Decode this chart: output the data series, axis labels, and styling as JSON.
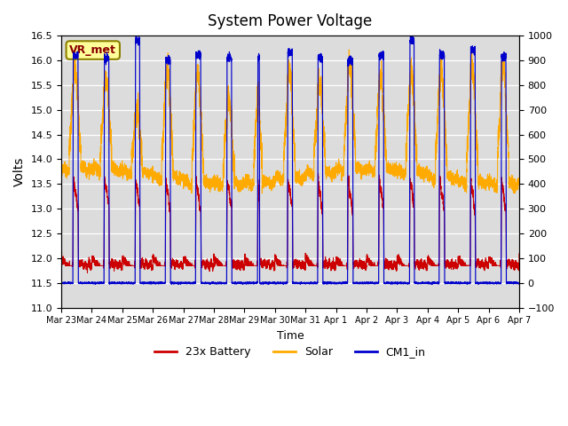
{
  "title": "System Power Voltage",
  "xlabel": "Time",
  "ylabel_left": "Volts",
  "left_ylim": [
    11.0,
    16.5
  ],
  "right_ylim": [
    -100,
    1000
  ],
  "left_yticks": [
    11.0,
    11.5,
    12.0,
    12.5,
    13.0,
    13.5,
    14.0,
    14.5,
    15.0,
    15.5,
    16.0,
    16.5
  ],
  "right_yticks": [
    -100,
    0,
    100,
    200,
    300,
    400,
    500,
    600,
    700,
    800,
    900,
    1000
  ],
  "xtick_labels": [
    "Mar 23",
    "Mar 24",
    "Mar 25",
    "Mar 26",
    "Mar 27",
    "Mar 28",
    "Mar 29",
    "Mar 30",
    "Mar 31",
    "Apr 1",
    "Apr 2",
    "Apr 3",
    "Apr 4",
    "Apr 5",
    "Apr 6",
    "Apr 7"
  ],
  "color_battery": "#cc0000",
  "color_solar": "#ffaa00",
  "color_cm1": "#0000cc",
  "legend_labels": [
    "23x Battery",
    "Solar",
    "CM1_in"
  ],
  "vr_met_label": "VR_met",
  "background_color": "#dcdcdc"
}
